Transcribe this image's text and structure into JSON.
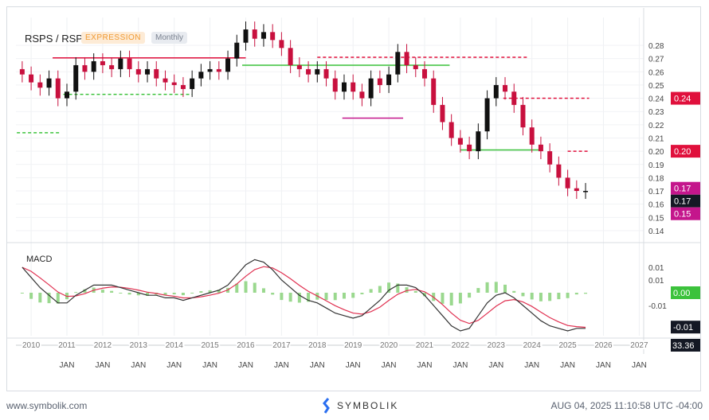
{
  "header": {
    "symbol": "RSPS / RSP",
    "type_badge": "EXPRESSION",
    "period_badge": "Monthly"
  },
  "footer": {
    "site": "www.symbolik.com",
    "brand": "SYMBOLIK",
    "timestamp": "AUG 04, 2025 11:10:58 UTC -04:00"
  },
  "colors": {
    "up": "#111111",
    "down": "#c8103e",
    "green": "#3cc23c",
    "red": "#e0103c",
    "magenta": "#c4168c",
    "macd": "#333333",
    "signal": "#e03050",
    "hist": "#9ad88e"
  },
  "chart_data": [
    {
      "type": "candlestick",
      "title": "RSPS / RSP",
      "period": "Monthly",
      "x_start": "2009 Q4",
      "x_step": "quarter",
      "closes": [
        0.258,
        0.252,
        0.248,
        0.255,
        0.24,
        0.245,
        0.265,
        0.26,
        0.268,
        0.265,
        0.262,
        0.27,
        0.262,
        0.258,
        0.262,
        0.255,
        0.252,
        0.25,
        0.247,
        0.255,
        0.26,
        0.262,
        0.26,
        0.27,
        0.282,
        0.292,
        0.285,
        0.29,
        0.284,
        0.278,
        0.265,
        0.262,
        0.258,
        0.262,
        0.255,
        0.245,
        0.252,
        0.245,
        0.24,
        0.255,
        0.25,
        0.258,
        0.275,
        0.265,
        0.262,
        0.255,
        0.235,
        0.222,
        0.21,
        0.205,
        0.2,
        0.215,
        0.24,
        0.25,
        0.245,
        0.235,
        0.218,
        0.205,
        0.2,
        0.19,
        0.18,
        0.172,
        0.17,
        0.17
      ],
      "y_ticks": [
        "0.28",
        "0.27",
        "0.26",
        "0.25",
        "0.24",
        "0.23",
        "0.22",
        "0.21",
        "0.20",
        "0.19",
        "0.18",
        "0.17",
        "0.16",
        "0.15",
        "0.14"
      ],
      "ylim": [
        0.135,
        0.29
      ],
      "price_labels": [
        {
          "value": 0.24,
          "text": "0.24",
          "color": "#e0103c"
        },
        {
          "value": 0.2,
          "text": "0.20",
          "color": "#e0103c"
        },
        {
          "value": 0.172,
          "text": "0.17",
          "color": "#c4168c"
        },
        {
          "value": 0.168,
          "text": "0.17",
          "color": "#141824"
        },
        {
          "value": 0.153,
          "text": "0.15",
          "color": "#c4168c"
        }
      ],
      "levels": [
        {
          "value": 0.2705,
          "from": 2010.6,
          "to": 2016.0,
          "color": "#e0103c",
          "dashed": false
        },
        {
          "value": 0.265,
          "from": 2015.9,
          "to": 2021.7,
          "color": "#3cc23c",
          "dashed": false
        },
        {
          "value": 0.271,
          "from": 2018.0,
          "to": 2023.9,
          "color": "#e0103c",
          "dashed": true
        },
        {
          "value": 0.243,
          "from": 2010.9,
          "to": 2014.5,
          "color": "#3cc23c",
          "dashed": true
        },
        {
          "value": 0.214,
          "from": 2009.6,
          "to": 2010.8,
          "color": "#3cc23c",
          "dashed": true
        },
        {
          "value": 0.24,
          "from": 2023.2,
          "to": 2025.6,
          "color": "#e0103c",
          "dashed": true
        },
        {
          "value": 0.201,
          "from": 2022.0,
          "to": 2024.2,
          "color": "#3cc23c",
          "dashed": false
        },
        {
          "value": 0.2,
          "from": 2025.0,
          "to": 2025.6,
          "color": "#e0103c",
          "dashed": true
        },
        {
          "value": 0.225,
          "from": 2018.7,
          "to": 2020.4,
          "color": "#c4168c",
          "dashed": false
        }
      ]
    },
    {
      "type": "line",
      "title": "MACD",
      "macd": [
        0.01,
        0.006,
        0.002,
        -0.001,
        -0.004,
        -0.004,
        -0.001,
        0.001,
        0.003,
        0.003,
        0.003,
        0.002,
        0.001,
        0.0,
        -0.001,
        -0.001,
        -0.002,
        -0.002,
        -0.003,
        -0.002,
        -0.001,
        0.0,
        0.001,
        0.003,
        0.007,
        0.011,
        0.013,
        0.012,
        0.009,
        0.005,
        0.002,
        -0.001,
        -0.003,
        -0.004,
        -0.006,
        -0.008,
        -0.009,
        -0.01,
        -0.009,
        -0.006,
        -0.003,
        0.001,
        0.003,
        0.003,
        0.002,
        -0.001,
        -0.005,
        -0.009,
        -0.013,
        -0.015,
        -0.014,
        -0.009,
        -0.004,
        -0.001,
        0.0,
        -0.002,
        -0.005,
        -0.008,
        -0.011,
        -0.013,
        -0.014,
        -0.015,
        -0.014,
        -0.014
      ],
      "y_ticks": [
        {
          "value": 0.01,
          "text": "0.01"
        },
        {
          "value": 0.005,
          "text": "0.01"
        },
        {
          "value": -0.005,
          "text": "-0.01"
        }
      ],
      "value_labels": [
        {
          "value": 0.0,
          "text": "0.00",
          "color": "#3cc23c"
        },
        {
          "value": -0.0135,
          "text": "-0.01",
          "color": "#141824"
        }
      ]
    },
    {
      "type": "axis",
      "years": [
        "2010",
        "2011",
        "2012",
        "2013",
        "2014",
        "2015",
        "2016",
        "2017",
        "2018",
        "2019",
        "2020",
        "2021",
        "2022",
        "2023",
        "2024",
        "2025",
        "2026",
        "2027"
      ],
      "month_label": "JAN",
      "readout": "33.36"
    }
  ]
}
